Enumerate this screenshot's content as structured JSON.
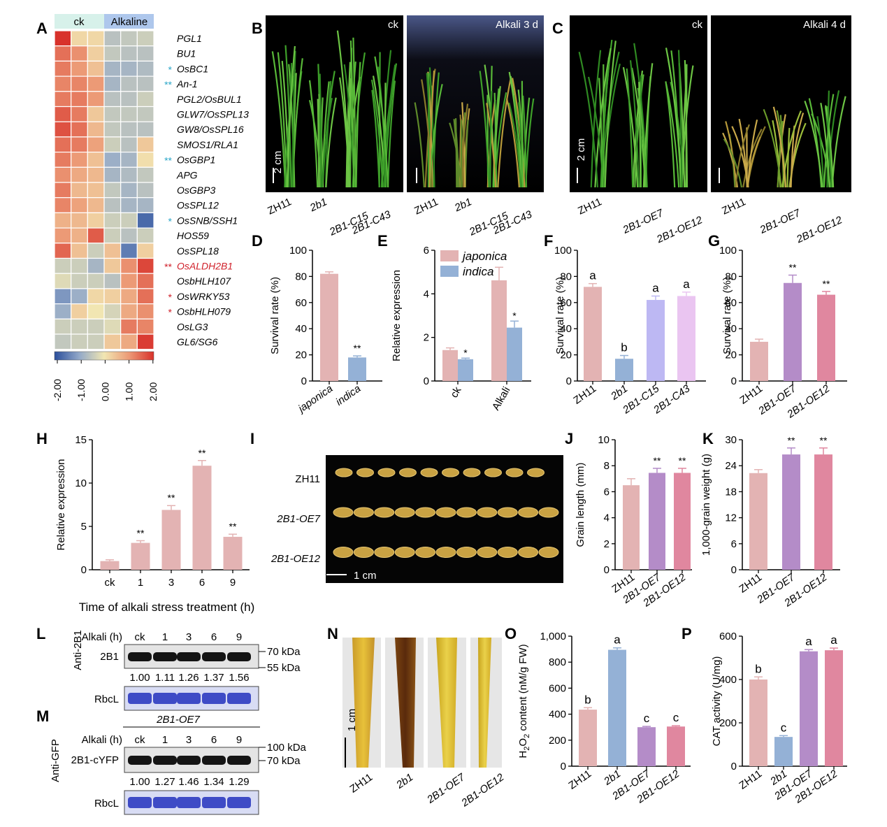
{
  "colors": {
    "pink": "#e3b3b3",
    "blue": "#94b1d6",
    "purple": "#b48cc8",
    "rose": "#e0879f",
    "lavender": "#bdb8f3",
    "lilac": "#eac5f1",
    "navy": "#2b4f9c",
    "red_star": "#d0202a",
    "cyan_star": "#2aa6c8",
    "coomassie": "#3e4bc6",
    "black": "#000000"
  },
  "panel_labels": [
    "A",
    "B",
    "C",
    "D",
    "E",
    "F",
    "G",
    "H",
    "I",
    "J",
    "K",
    "L",
    "M",
    "N",
    "O",
    "P"
  ],
  "heatmap": {
    "groups": [
      "ck",
      "Alkaline"
    ],
    "genes": [
      "PGL1",
      "BU1",
      "OsBC1",
      "An-1",
      "PGL2/OsBUL1",
      "GLW7/OsSPL13",
      "GW8/OsSPL16",
      "SMOS1/RLA1",
      "OsGBP1",
      "APG",
      "OsGBP3",
      "OsSPL12",
      "OsSNB/SSH1",
      "HOS59",
      "OsSPL18",
      "OsALDH2B1",
      "OsbHLH107",
      "OsWRKY53",
      "OsbHLH079",
      "OsLG3",
      "GL6/SG6"
    ],
    "stars": [
      "",
      "",
      "*",
      "**",
      "",
      "",
      "",
      "",
      "**",
      "",
      "",
      "",
      "*",
      "",
      "",
      "**",
      "",
      "*",
      "*",
      "",
      ""
    ],
    "star_colors": [
      "",
      "",
      "cyan",
      "cyan",
      "",
      "",
      "",
      "",
      "cyan",
      "",
      "",
      "",
      "cyan",
      "",
      "",
      "red",
      "",
      "red",
      "red",
      "",
      ""
    ],
    "highlight_index": 15,
    "values": [
      [
        2.0,
        0.2,
        0.2,
        -0.6,
        -0.5,
        -0.4
      ],
      [
        1.4,
        1.1,
        0.3,
        -0.5,
        -0.6,
        -0.6
      ],
      [
        1.3,
        1.0,
        0.5,
        -0.8,
        -0.8,
        -0.7
      ],
      [
        1.2,
        1.2,
        1.0,
        -0.8,
        -0.6,
        -0.6
      ],
      [
        1.3,
        1.3,
        1.0,
        -0.6,
        -0.6,
        -0.4
      ],
      [
        1.6,
        1.3,
        0.4,
        -0.5,
        -0.5,
        -0.5
      ],
      [
        1.7,
        1.4,
        0.6,
        -0.5,
        -0.6,
        -0.6
      ],
      [
        1.4,
        1.3,
        0.9,
        -0.4,
        -0.6,
        0.4
      ],
      [
        1.3,
        1.0,
        0.5,
        -0.9,
        -0.8,
        0.1
      ],
      [
        1.1,
        0.8,
        0.6,
        -0.8,
        -0.7,
        -0.5
      ],
      [
        1.3,
        0.6,
        0.5,
        -0.5,
        -0.8,
        -0.6
      ],
      [
        1.2,
        0.9,
        0.6,
        -0.6,
        -0.8,
        -0.8
      ],
      [
        0.7,
        0.6,
        0.3,
        -0.4,
        -0.4,
        -1.7
      ],
      [
        1.0,
        0.7,
        1.6,
        -0.4,
        -0.6,
        -0.4
      ],
      [
        1.5,
        0.5,
        -0.4,
        0.5,
        -1.5,
        0.3
      ],
      [
        -0.4,
        -0.4,
        -0.8,
        0.4,
        1.1,
        1.8
      ],
      [
        -0.2,
        -0.4,
        -0.4,
        -0.6,
        1.0,
        1.4
      ],
      [
        -1.2,
        -0.9,
        0.2,
        0.3,
        0.8,
        1.4
      ],
      [
        -0.9,
        0.3,
        0.0,
        -0.3,
        0.8,
        1.1
      ],
      [
        -0.4,
        -0.4,
        -0.4,
        -0.2,
        1.3,
        1.2
      ],
      [
        -0.5,
        -0.4,
        -0.4,
        0.4,
        0.8,
        1.9
      ]
    ],
    "scale_ticks": [
      "-2.00",
      "-1.00",
      "0.00",
      "1.00",
      "2.00"
    ]
  },
  "panel_B": {
    "photos": [
      {
        "label": "ck"
      },
      {
        "label": "Alkali 3 d"
      }
    ],
    "scale": "2 cm",
    "lines": [
      "ZH11",
      "2b1",
      "2B1-C15",
      "2B1-C43",
      "ZH11",
      "2b1",
      "2B1-C15",
      "2B1-C43"
    ]
  },
  "panel_C": {
    "photos": [
      {
        "label": "ck"
      },
      {
        "label": "Alkali 4 d"
      }
    ],
    "scale": "2 cm",
    "lines": [
      "ZH11",
      "2B1-OE7",
      "2B1-OE12",
      "ZH11",
      "2B1-OE7",
      "2B1-OE12"
    ]
  },
  "chart_data": [
    {
      "panel": "D",
      "type": "bar",
      "ylabel": "Survival rate (%)",
      "ylim": [
        0,
        100
      ],
      "ticks": [
        "0",
        "20",
        "40",
        "60",
        "80",
        "100"
      ],
      "categories": [
        "japonica",
        "indica"
      ],
      "values": [
        82,
        18
      ],
      "errors": [
        1.5,
        1.2
      ],
      "stars": [
        "",
        "**"
      ],
      "colors": [
        "pink",
        "blue"
      ]
    },
    {
      "panel": "E",
      "type": "bar",
      "ylabel": "Relative expression",
      "ylim": [
        0,
        6
      ],
      "ticks": [
        "0",
        "2",
        "4",
        "6"
      ],
      "categories": [
        "ck",
        "Alkali"
      ],
      "series": [
        {
          "name": "japonica",
          "values": [
            1.42,
            4.62
          ],
          "errors": [
            0.1,
            0.6
          ]
        },
        {
          "name": "indica",
          "values": [
            1.0,
            2.45
          ],
          "errors": [
            0.05,
            0.3
          ]
        }
      ],
      "stars": [
        "*",
        "*"
      ],
      "legend": [
        "japonica",
        "indica"
      ]
    },
    {
      "panel": "F",
      "type": "bar",
      "ylabel": "Survival rate (%)",
      "ylim": [
        0,
        100
      ],
      "ticks": [
        "0",
        "20",
        "40",
        "60",
        "80",
        "100"
      ],
      "categories": [
        "ZH11",
        "2b1",
        "2B1-C15",
        "2B1-C43"
      ],
      "values": [
        72,
        17,
        62,
        65
      ],
      "errors": [
        2.5,
        2.5,
        3,
        3
      ],
      "letters": [
        "a",
        "b",
        "a",
        "a"
      ],
      "colors": [
        "pink",
        "blue",
        "lavender",
        "lilac"
      ]
    },
    {
      "panel": "G",
      "type": "bar",
      "ylabel": "Survival rate (%)",
      "ylim": [
        0,
        100
      ],
      "ticks": [
        "0",
        "20",
        "40",
        "60",
        "80",
        "100"
      ],
      "categories": [
        "ZH11",
        "2B1-OE7",
        "2B1-OE12"
      ],
      "values": [
        30,
        75,
        66
      ],
      "errors": [
        2,
        6,
        2.5
      ],
      "stars": [
        "",
        "**",
        "**"
      ],
      "colors": [
        "pink",
        "purple",
        "rose"
      ]
    },
    {
      "panel": "H",
      "type": "bar",
      "ylabel": "Relative expression",
      "xlabel": "Time of alkali stress treatment (h)",
      "ylim": [
        0,
        15
      ],
      "ticks": [
        "0",
        "5",
        "10",
        "15"
      ],
      "categories": [
        "ck",
        "1",
        "3",
        "6",
        "9"
      ],
      "values": [
        1.0,
        3.1,
        6.9,
        12.0,
        3.8
      ],
      "errors": [
        0.15,
        0.25,
        0.5,
        0.6,
        0.3
      ],
      "stars": [
        "",
        "**",
        "**",
        "**",
        "**"
      ],
      "colors": [
        "pink",
        "pink",
        "pink",
        "pink",
        "pink"
      ]
    },
    {
      "panel": "J",
      "type": "bar",
      "ylabel": "Grain length (mm)",
      "ylim": [
        0,
        10
      ],
      "ticks": [
        "0",
        "2",
        "4",
        "6",
        "8",
        "10"
      ],
      "categories": [
        "ZH11",
        "2B1-OE7",
        "2B1-OE12"
      ],
      "values": [
        6.5,
        7.45,
        7.45
      ],
      "errors": [
        0.5,
        0.35,
        0.35
      ],
      "stars": [
        "",
        "**",
        "**"
      ],
      "colors": [
        "pink",
        "purple",
        "rose"
      ]
    },
    {
      "panel": "K",
      "type": "bar",
      "ylabel": "1,000-grain weight (g)",
      "ylim": [
        0,
        30
      ],
      "ticks": [
        "0",
        "6",
        "12",
        "18",
        "24",
        "30"
      ],
      "categories": [
        "ZH11",
        "2B1-OE7",
        "2B1-OE12"
      ],
      "values": [
        22.3,
        26.6,
        26.6
      ],
      "errors": [
        0.8,
        1.5,
        1.5
      ],
      "stars": [
        "",
        "**",
        "**"
      ],
      "colors": [
        "pink",
        "purple",
        "rose"
      ]
    },
    {
      "panel": "O",
      "type": "bar",
      "ylabel": "H2O2 content (nM/g FW)",
      "ylim": [
        0,
        1000
      ],
      "ticks": [
        "0",
        "200",
        "400",
        "600",
        "800",
        "1,000"
      ],
      "categories": [
        "ZH11",
        "2b1",
        "2B1-OE7",
        "2B1-OE12"
      ],
      "values": [
        435,
        895,
        300,
        305
      ],
      "errors": [
        15,
        15,
        6,
        6
      ],
      "letters": [
        "b",
        "a",
        "c",
        "c"
      ],
      "colors": [
        "pink",
        "blue",
        "purple",
        "rose"
      ]
    },
    {
      "panel": "P",
      "type": "bar",
      "ylabel": "CAT activity (U/mg)",
      "ylim": [
        0,
        600
      ],
      "ticks": [
        "0",
        "200",
        "400",
        "600"
      ],
      "categories": [
        "ZH11",
        "2b1",
        "2B1-OE7",
        "2B1-OE12"
      ],
      "values": [
        400,
        135,
        530,
        535
      ],
      "errors": [
        12,
        6,
        8,
        10
      ],
      "letters": [
        "b",
        "c",
        "a",
        "a"
      ],
      "colors": [
        "pink",
        "blue",
        "purple",
        "rose"
      ]
    }
  ],
  "panel_I": {
    "rows": [
      "ZH11",
      "2B1-OE7",
      "2B1-OE12"
    ],
    "scale": "1 cm"
  },
  "panel_L": {
    "header": "Alkali (h)",
    "timepoints": [
      "ck",
      "1",
      "3",
      "6",
      "9"
    ],
    "antibody": "Anti-2B1",
    "band1": "2B1",
    "band2": "RbcL",
    "quant": [
      "1.00",
      "1.11",
      "1.26",
      "1.37",
      "1.56"
    ],
    "markers": [
      "70 kDa",
      "55 kDa"
    ]
  },
  "panel_M": {
    "title": "2B1-OE7",
    "header": "Alkali (h)",
    "timepoints": [
      "ck",
      "1",
      "3",
      "6",
      "9"
    ],
    "antibody": "Anti-GFP",
    "band1": "2B1-cYFP",
    "band2": "RbcL",
    "quant": [
      "1.00",
      "1.27",
      "1.46",
      "1.34",
      "1.29"
    ],
    "markers": [
      "100 kDa",
      "70 kDa"
    ]
  },
  "panel_N": {
    "lines": [
      "ZH11",
      "2b1",
      "2B1-OE7",
      "2B1-OE12"
    ],
    "scale": "1 cm"
  }
}
